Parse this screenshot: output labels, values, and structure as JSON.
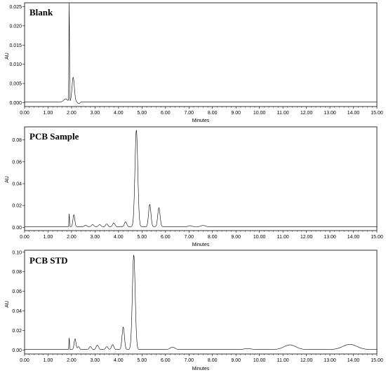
{
  "chart_data": [
    {
      "type": "line",
      "title": "Blank",
      "xlabel": "Minutes",
      "ylabel": "AU",
      "xlim": [
        0,
        15
      ],
      "ylim": [
        -0.001,
        0.026
      ],
      "x_ticks": [
        "0.00",
        "1.00",
        "2.00",
        "3.00",
        "4.00",
        "5.00",
        "6.00",
        "7.00",
        "8.00",
        "9.00",
        "10.00",
        "11.00",
        "12.00",
        "13.00",
        "14.00",
        "15.00"
      ],
      "y_ticks": [
        {
          "value": 0,
          "label": "0.000"
        },
        {
          "value": 0.005,
          "label": "0.005"
        },
        {
          "value": 0.01,
          "label": "0.010"
        },
        {
          "value": 0.015,
          "label": "0.015"
        },
        {
          "value": 0.02,
          "label": "0.020"
        },
        {
          "value": 0.025,
          "label": "0.025"
        }
      ],
      "baseline": 0.0002,
      "series": [
        {
          "values": [
            [
              0,
              0.0002
            ],
            [
              1.7,
              0.0012
            ],
            [
              1.88,
              0.0026
            ],
            [
              1.9,
              0.0256
            ],
            [
              1.92,
              0.002
            ],
            [
              2.0,
              0.0046
            ],
            [
              2.05,
              0.0064
            ],
            [
              2.12,
              0.005
            ],
            [
              2.2,
              0.0014
            ],
            [
              2.3,
              -0.0003
            ],
            [
              2.4,
              0.0001
            ]
          ],
          "peaks": [
            {
              "rt": 1.9,
              "height": 0.0256,
              "width": 0.012
            },
            {
              "rt": 2.07,
              "height": 0.0064,
              "width": 0.05
            },
            {
              "rt": 1.75,
              "height": 0.0008,
              "width": 0.08
            }
          ]
        }
      ]
    },
    {
      "type": "line",
      "title": "PCB Sample",
      "xlabel": "Minutes",
      "ylabel": "AU",
      "xlim": [
        0,
        15
      ],
      "ylim": [
        -0.003,
        0.092
      ],
      "x_ticks": [
        "0.00",
        "1.00",
        "2.00",
        "3.00",
        "4.00",
        "5.00",
        "6.00",
        "7.00",
        "8.00",
        "9.00",
        "10.00",
        "11.00",
        "12.00",
        "13.00",
        "14.00",
        "15.00"
      ],
      "y_ticks": [
        {
          "value": 0,
          "label": "0.00"
        },
        {
          "value": 0.02,
          "label": "0.02"
        },
        {
          "value": 0.04,
          "label": "0.04"
        },
        {
          "value": 0.06,
          "label": "0.06"
        },
        {
          "value": 0.08,
          "label": "0.08"
        }
      ],
      "baseline": 0.0005,
      "series": [
        {
          "peaks": [
            {
              "rt": 1.9,
              "height": 0.012,
              "width": 0.012
            },
            {
              "rt": 2.1,
              "height": 0.011,
              "width": 0.04
            },
            {
              "rt": 2.6,
              "height": 0.0015,
              "width": 0.05
            },
            {
              "rt": 2.9,
              "height": 0.002,
              "width": 0.05
            },
            {
              "rt": 3.2,
              "height": 0.002,
              "width": 0.05
            },
            {
              "rt": 3.5,
              "height": 0.0025,
              "width": 0.05
            },
            {
              "rt": 3.8,
              "height": 0.0035,
              "width": 0.05
            },
            {
              "rt": 4.3,
              "height": 0.0045,
              "width": 0.05
            },
            {
              "rt": 4.76,
              "height": 0.0885,
              "width": 0.06
            },
            {
              "rt": 5.33,
              "height": 0.0205,
              "width": 0.05
            },
            {
              "rt": 5.72,
              "height": 0.0175,
              "width": 0.05
            },
            {
              "rt": 7.05,
              "height": 0.001,
              "width": 0.08
            },
            {
              "rt": 7.6,
              "height": 0.0012,
              "width": 0.1
            }
          ]
        }
      ]
    },
    {
      "type": "line",
      "title": "PCB STD",
      "xlabel": "Minutes",
      "ylabel": "AU",
      "xlim": [
        0,
        15
      ],
      "ylim": [
        -0.004,
        0.102
      ],
      "x_ticks": [
        "0.00",
        "1.00",
        "2.00",
        "3.00",
        "4.00",
        "5.00",
        "6.00",
        "7.00",
        "8.00",
        "9.00",
        "10.00",
        "11.00",
        "12.00",
        "13.00",
        "14.00",
        "15.00"
      ],
      "y_ticks": [
        {
          "value": 0,
          "label": "0.00"
        },
        {
          "value": 0.02,
          "label": "0.02"
        },
        {
          "value": 0.04,
          "label": "0.04"
        },
        {
          "value": 0.06,
          "label": "0.06"
        },
        {
          "value": 0.08,
          "label": "0.08"
        },
        {
          "value": 0.1,
          "label": "0.10"
        }
      ],
      "baseline": 0.0005,
      "series": [
        {
          "peaks": [
            {
              "rt": 1.9,
              "height": 0.012,
              "width": 0.012
            },
            {
              "rt": 2.15,
              "height": 0.011,
              "width": 0.04
            },
            {
              "rt": 2.3,
              "height": 0.003,
              "width": 0.04
            },
            {
              "rt": 2.8,
              "height": 0.003,
              "width": 0.05
            },
            {
              "rt": 3.1,
              "height": 0.0045,
              "width": 0.05
            },
            {
              "rt": 3.5,
              "height": 0.003,
              "width": 0.05
            },
            {
              "rt": 3.75,
              "height": 0.005,
              "width": 0.05
            },
            {
              "rt": 4.2,
              "height": 0.023,
              "width": 0.05
            },
            {
              "rt": 4.65,
              "height": 0.0965,
              "width": 0.06
            },
            {
              "rt": 6.3,
              "height": 0.0025,
              "width": 0.1
            },
            {
              "rt": 9.5,
              "height": 0.001,
              "width": 0.15
            },
            {
              "rt": 11.3,
              "height": 0.0048,
              "width": 0.25
            },
            {
              "rt": 13.85,
              "height": 0.0053,
              "width": 0.3
            }
          ]
        }
      ]
    }
  ]
}
